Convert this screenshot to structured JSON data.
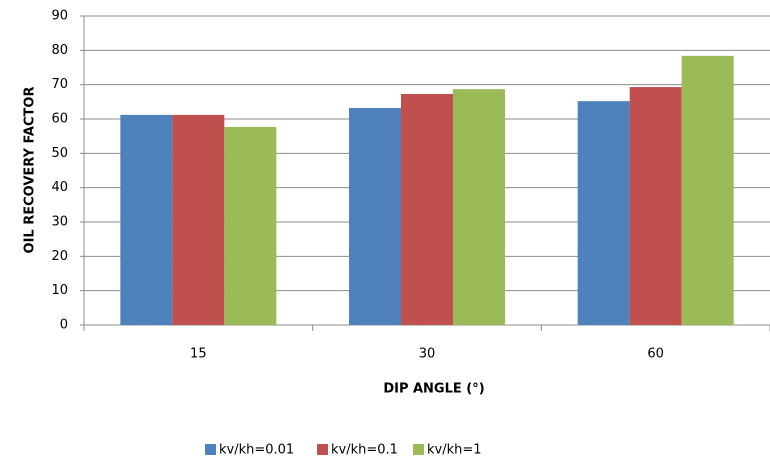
{
  "chart_data": {
    "type": "bar",
    "xlabel": "DIP ANGLE (°)",
    "ylabel": "OIL RECOVERY FACTOR",
    "categories": [
      "15",
      "30",
      "60"
    ],
    "series": [
      {
        "name": "kv/kh=0.01",
        "color": "#4f81bd",
        "values": [
          61.2,
          63.2,
          65.2
        ]
      },
      {
        "name": "kv/kh=0.1",
        "color": "#c0504d",
        "values": [
          61.2,
          67.3,
          69.3
        ]
      },
      {
        "name": "kv/kh=1",
        "color": "#9bbb59",
        "values": [
          57.7,
          68.7,
          78.4
        ]
      }
    ],
    "ylim": [
      0,
      90
    ],
    "yticks": [
      0,
      10,
      20,
      30,
      40,
      50,
      60,
      70,
      80,
      90
    ],
    "grid": true,
    "legend": "bottom"
  }
}
